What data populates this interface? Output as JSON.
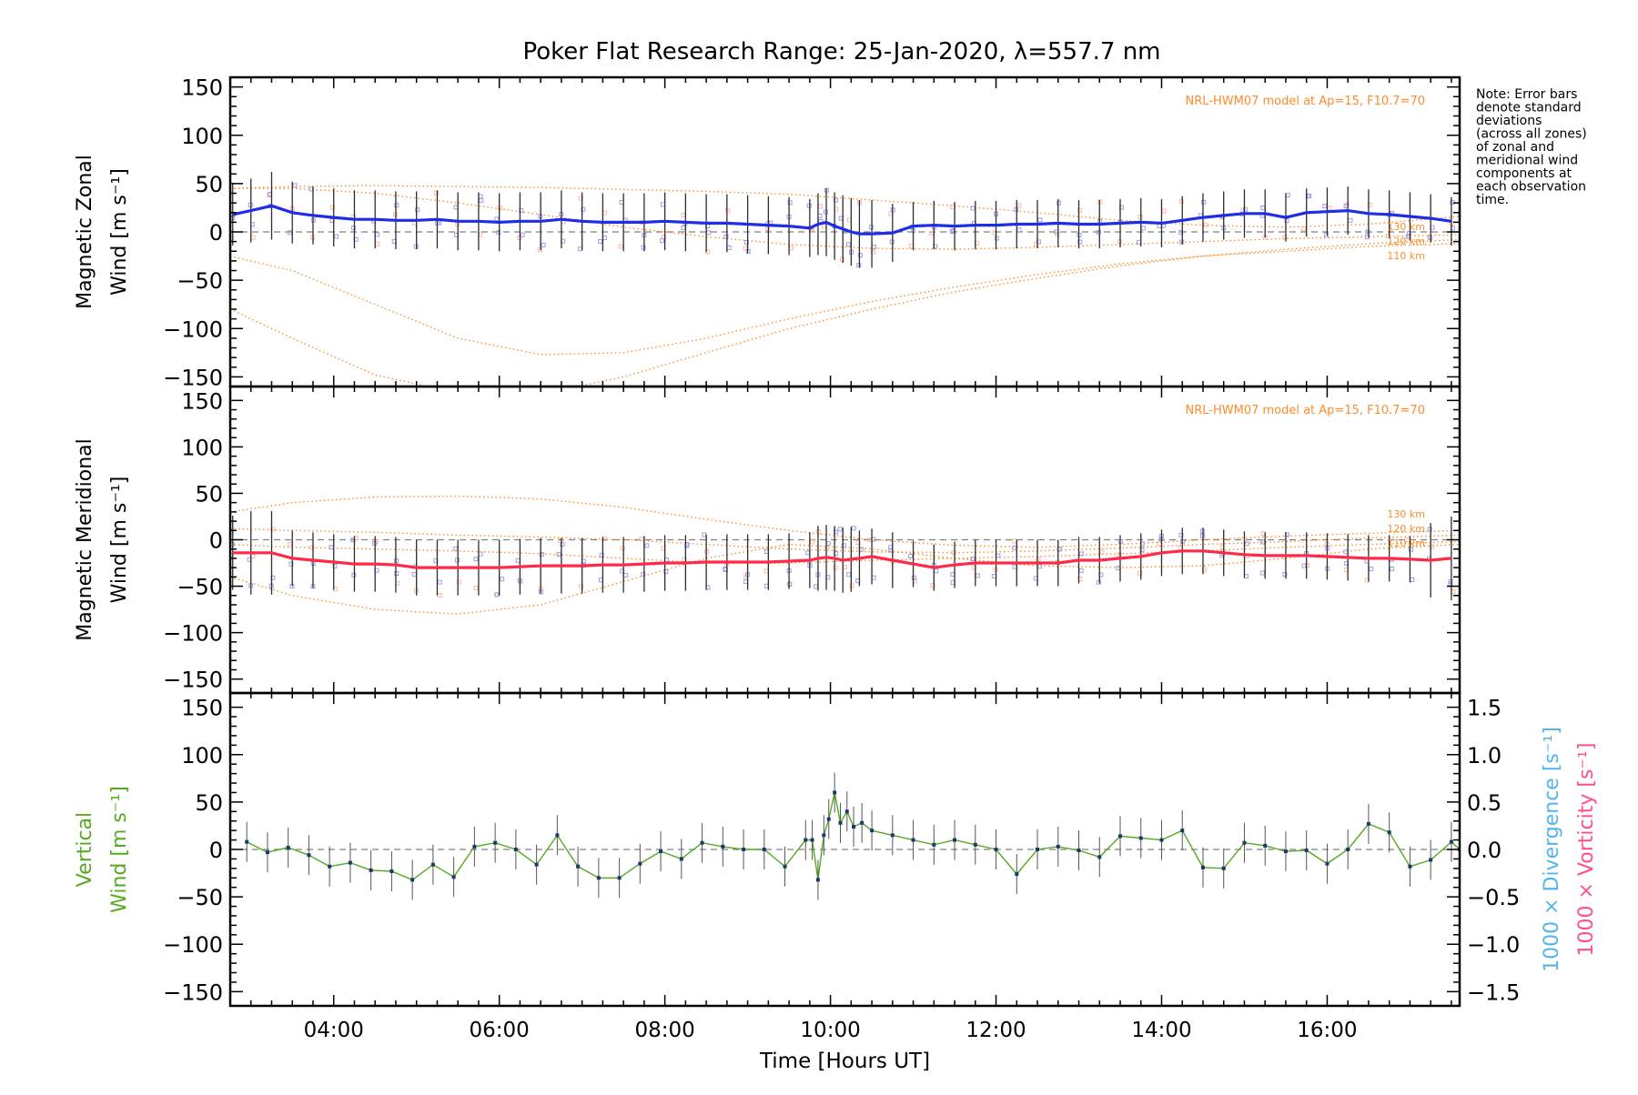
{
  "title": "Poker Flat Research Range: 25-Jan-2020, λ=557.7 nm",
  "note_lines": [
    "Note: Error bars",
    "denote standard",
    "deviations",
    "(across all zones)",
    "of zonal and",
    "meridional wind",
    "components at",
    "each observation",
    "time."
  ],
  "colors": {
    "axis": "#000000",
    "zonal": "#1f2ee6",
    "meridional": "#ff2a4a",
    "vertical": "#55aa22",
    "model": "#ff8c2a",
    "divergence": "#55b5e6",
    "vorticity": "#ff4f86",
    "zone_points": "#9e9ee6",
    "zone_points_warm": "#ffb8a0",
    "errorbar": "#2d2d2d",
    "zero_line": "#808080"
  },
  "chart_data": [
    {
      "panel": "zonal",
      "type": "line",
      "ylabel_line1": "Magnetic Zonal",
      "ylabel_line2": "Wind [m s⁻¹]",
      "ylim": [
        -160,
        160
      ],
      "yticks": [
        "150",
        "100",
        "50",
        "0",
        "−50",
        "−100",
        "−150"
      ],
      "ytick_values": [
        150,
        100,
        50,
        0,
        -50,
        -100,
        -150
      ],
      "xlim": [
        2.75,
        17.6
      ],
      "model_label": "NRL-HWM07 model at Ap=15, F10.7=70",
      "model_curve_labels": [
        "130 km",
        "120 km",
        "110 km"
      ],
      "x": [
        2.78,
        3.0,
        3.25,
        3.5,
        3.75,
        4.0,
        4.25,
        4.5,
        4.75,
        5.0,
        5.25,
        5.5,
        5.75,
        6.0,
        6.25,
        6.5,
        6.75,
        7.0,
        7.25,
        7.5,
        7.75,
        8.0,
        8.25,
        8.5,
        8.75,
        9.0,
        9.25,
        9.5,
        9.75,
        9.85,
        9.95,
        10.05,
        10.15,
        10.25,
        10.35,
        10.5,
        10.75,
        11.0,
        11.25,
        11.5,
        11.75,
        12.0,
        12.25,
        12.5,
        12.75,
        13.0,
        13.25,
        13.5,
        13.75,
        14.0,
        14.25,
        14.5,
        14.75,
        15.0,
        15.25,
        15.5,
        15.75,
        16.0,
        16.25,
        16.5,
        16.75,
        17.0,
        17.25,
        17.5
      ],
      "y": [
        18,
        22,
        27,
        20,
        17,
        15,
        13,
        13,
        12,
        12,
        13,
        11,
        11,
        10,
        11,
        11,
        13,
        11,
        10,
        10,
        10,
        11,
        10,
        9,
        9,
        8,
        7,
        6,
        4,
        8,
        10,
        6,
        3,
        0,
        -2,
        -2,
        -1,
        6,
        7,
        6,
        7,
        7,
        8,
        8,
        9,
        8,
        8,
        9,
        10,
        9,
        12,
        15,
        17,
        19,
        19,
        15,
        20,
        21,
        22,
        19,
        18,
        16,
        14,
        11
      ],
      "err": [
        32,
        33,
        35,
        32,
        30,
        30,
        30,
        30,
        30,
        30,
        30,
        30,
        30,
        30,
        30,
        30,
        30,
        30,
        30,
        30,
        30,
        30,
        30,
        30,
        30,
        30,
        30,
        30,
        30,
        32,
        35,
        35,
        35,
        35,
        35,
        35,
        30,
        25,
        25,
        25,
        25,
        25,
        25,
        25,
        25,
        25,
        25,
        25,
        25,
        25,
        25,
        25,
        25,
        25,
        25,
        25,
        25,
        25,
        25,
        25,
        25,
        25,
        25,
        25
      ],
      "model_x": [
        2.75,
        3.5,
        4.5,
        5.5,
        6.5,
        7.5,
        8.5,
        9.5,
        10.5,
        11.5,
        12.5,
        13.5,
        14.5,
        15.5,
        16.5,
        17.6
      ],
      "model_130": [
        45,
        47,
        48,
        47,
        46,
        44,
        42,
        39,
        33,
        27,
        20,
        12,
        7,
        5,
        8,
        16
      ],
      "model_120": [
        45,
        45,
        40,
        30,
        18,
        5,
        -5,
        -13,
        -17,
        -18,
        -16,
        -13,
        -10,
        -7,
        -5,
        -3
      ],
      "model_110": [
        -25,
        -40,
        -75,
        -110,
        -127,
        -125,
        -110,
        -90,
        -72,
        -57,
        -44,
        -33,
        -25,
        -20,
        -15,
        -12
      ],
      "model_extra": [
        -80,
        -110,
        -148,
        -167,
        -168,
        -150,
        -125,
        -100,
        -80,
        -62,
        -48,
        -35,
        -25,
        -18,
        -12,
        -8
      ]
    },
    {
      "panel": "meridional",
      "type": "line",
      "ylabel_line1": "Magnetic Meridional",
      "ylabel_line2": "Wind [m s⁻¹]",
      "ylim": [
        -165,
        165
      ],
      "yticks": [
        "150",
        "100",
        "50",
        "0",
        "−50",
        "−100",
        "−150"
      ],
      "ytick_values": [
        150,
        100,
        50,
        0,
        -50,
        -100,
        -150
      ],
      "xlim": [
        2.75,
        17.6
      ],
      "model_label": "NRL-HWM07 model at Ap=15, F10.7=70",
      "model_curve_labels": [
        "130 km",
        "120 km",
        "110 km"
      ],
      "x": [
        2.78,
        3.0,
        3.25,
        3.5,
        3.75,
        4.0,
        4.25,
        4.5,
        4.75,
        5.0,
        5.25,
        5.5,
        5.75,
        6.0,
        6.25,
        6.5,
        6.75,
        7.0,
        7.25,
        7.5,
        7.75,
        8.0,
        8.25,
        8.5,
        8.75,
        9.0,
        9.25,
        9.5,
        9.75,
        9.85,
        9.95,
        10.05,
        10.15,
        10.25,
        10.35,
        10.5,
        10.75,
        11.0,
        11.25,
        11.5,
        11.75,
        12.0,
        12.25,
        12.5,
        12.75,
        13.0,
        13.25,
        13.5,
        13.75,
        14.0,
        14.25,
        14.5,
        14.75,
        15.0,
        15.25,
        15.5,
        15.75,
        16.0,
        16.25,
        16.5,
        16.75,
        17.0,
        17.25,
        17.5
      ],
      "y": [
        -14,
        -14,
        -14,
        -20,
        -22,
        -24,
        -26,
        -26,
        -27,
        -30,
        -30,
        -30,
        -30,
        -30,
        -29,
        -28,
        -28,
        -28,
        -27,
        -27,
        -26,
        -25,
        -25,
        -24,
        -24,
        -24,
        -24,
        -23,
        -22,
        -20,
        -19,
        -20,
        -22,
        -21,
        -20,
        -18,
        -22,
        -26,
        -30,
        -27,
        -25,
        -25,
        -25,
        -25,
        -25,
        -22,
        -22,
        -20,
        -18,
        -14,
        -12,
        -12,
        -14,
        -16,
        -17,
        -17,
        -17,
        -18,
        -19,
        -20,
        -20,
        -21,
        -22,
        -20
      ],
      "err": [
        40,
        45,
        45,
        30,
        30,
        30,
        30,
        30,
        30,
        30,
        30,
        30,
        30,
        30,
        30,
        30,
        30,
        30,
        30,
        30,
        30,
        30,
        30,
        30,
        30,
        30,
        30,
        30,
        30,
        35,
        35,
        35,
        35,
        35,
        30,
        30,
        30,
        25,
        25,
        25,
        25,
        25,
        25,
        25,
        25,
        25,
        25,
        25,
        25,
        25,
        25,
        25,
        25,
        25,
        25,
        25,
        25,
        25,
        25,
        25,
        25,
        25,
        40,
        45
      ],
      "model_x": [
        2.75,
        3.5,
        4.5,
        5.5,
        6.5,
        7.5,
        8.5,
        9.5,
        10.5,
        11.5,
        12.5,
        13.5,
        14.5,
        15.5,
        16.5,
        17.6
      ],
      "model_130": [
        30,
        40,
        46,
        47,
        44,
        35,
        22,
        10,
        0,
        -6,
        -8,
        -5,
        0,
        4,
        7,
        10
      ],
      "model_120": [
        12,
        10,
        8,
        5,
        3,
        0,
        -5,
        -10,
        -13,
        -14,
        -12,
        -9,
        -5,
        -2,
        2,
        5
      ],
      "model_110": [
        -40,
        -60,
        -75,
        -80,
        -70,
        -45,
        -20,
        -5,
        -10,
        -20,
        -28,
        -30,
        -28,
        -20,
        -10,
        -5
      ],
      "model_extra": [
        -5,
        -8,
        -10,
        -12,
        -15,
        -20,
        -25,
        -25,
        -22,
        -20,
        -18,
        -15,
        -12,
        -8,
        -5,
        -2
      ]
    },
    {
      "panel": "vertical",
      "type": "line",
      "ylabel_line1": "Vertical",
      "ylabel_line2": "Wind [m s⁻¹]",
      "right_label_divergence": "1000 × Divergence [s⁻¹]",
      "right_label_vorticity": "1000 × Vorticity [s⁻¹]",
      "ylim": [
        -165,
        165
      ],
      "yticks": [
        "150",
        "100",
        "50",
        "0",
        "−50",
        "−100",
        "−150"
      ],
      "ytick_values": [
        150,
        100,
        50,
        0,
        -50,
        -100,
        -150
      ],
      "right_yticks": [
        "1.5",
        "1.0",
        "0.5",
        "0.0",
        "−0.5",
        "−1.0",
        "−1.5"
      ],
      "right_ytick_values": [
        1.5,
        1.0,
        0.5,
        0.0,
        -0.5,
        -1.0,
        -1.5
      ],
      "right_ylim": [
        -1.65,
        1.65
      ],
      "xlim": [
        2.75,
        17.6
      ],
      "xticks": [
        "04:00",
        "06:00",
        "08:00",
        "10:00",
        "12:00",
        "14:00",
        "16:00"
      ],
      "xtick_values": [
        4,
        6,
        8,
        10,
        12,
        14,
        16
      ],
      "xlabel": "Time [Hours UT]",
      "x": [
        2.95,
        3.2,
        3.45,
        3.7,
        3.95,
        4.2,
        4.45,
        4.7,
        4.95,
        5.2,
        5.45,
        5.7,
        5.95,
        6.2,
        6.45,
        6.7,
        6.95,
        7.2,
        7.45,
        7.7,
        7.95,
        8.2,
        8.45,
        8.7,
        8.95,
        9.2,
        9.45,
        9.7,
        9.78,
        9.85,
        9.92,
        9.98,
        10.05,
        10.12,
        10.2,
        10.28,
        10.38,
        10.5,
        10.75,
        11.0,
        11.25,
        11.5,
        11.75,
        12.0,
        12.25,
        12.5,
        12.75,
        13.0,
        13.25,
        13.5,
        13.75,
        14.0,
        14.25,
        14.5,
        14.75,
        15.0,
        15.25,
        15.5,
        15.75,
        16.0,
        16.25,
        16.5,
        16.75,
        17.0,
        17.25,
        17.5,
        17.6
      ],
      "y": [
        8,
        -3,
        2,
        -6,
        -18,
        -14,
        -22,
        -23,
        -32,
        -16,
        -29,
        3,
        7,
        0,
        -16,
        15,
        -18,
        -30,
        -30,
        -15,
        -2,
        -10,
        7,
        3,
        0,
        0,
        -18,
        10,
        10,
        -32,
        15,
        32,
        60,
        28,
        40,
        24,
        28,
        20,
        15,
        10,
        5,
        10,
        5,
        0,
        -26,
        0,
        3,
        -1,
        -8,
        14,
        12,
        10,
        20,
        -19,
        -20,
        7,
        4,
        -2,
        -1,
        -15,
        0,
        27,
        18,
        -18,
        -11,
        8,
        0
      ]
    }
  ]
}
